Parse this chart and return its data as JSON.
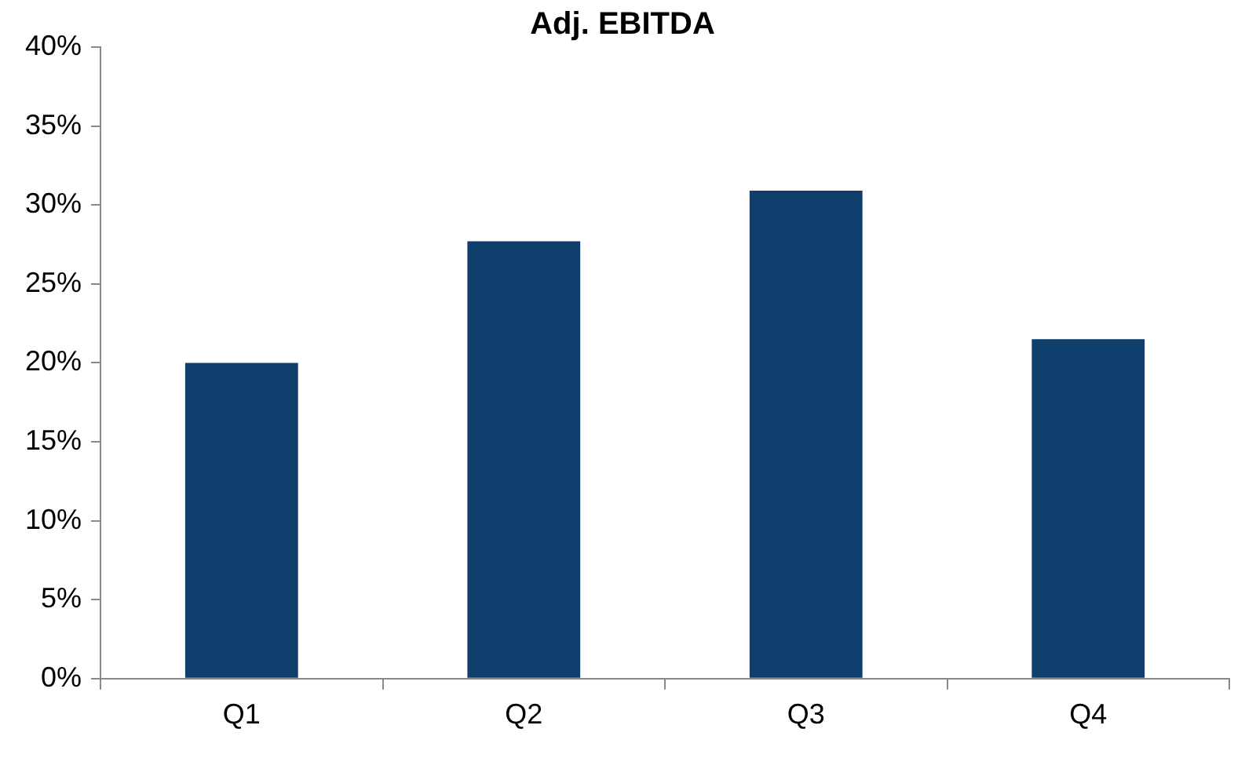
{
  "chart_data": {
    "type": "bar",
    "title": "Adj. EBITDA",
    "categories": [
      "Q1",
      "Q2",
      "Q3",
      "Q4"
    ],
    "values": [
      20,
      27.7,
      30.9,
      21.5
    ],
    "color": "#0f3e6c",
    "ylim": [
      0,
      40
    ],
    "yticks": [
      {
        "value": 0,
        "label": "0%"
      },
      {
        "value": 5,
        "label": "5%"
      },
      {
        "value": 10,
        "label": "10%"
      },
      {
        "value": 15,
        "label": "15%"
      },
      {
        "value": 20,
        "label": "20%"
      },
      {
        "value": 25,
        "label": "25%"
      },
      {
        "value": 30,
        "label": "30%"
      },
      {
        "value": 35,
        "label": "35%"
      },
      {
        "value": 40,
        "label": "40%"
      }
    ],
    "grid": false,
    "legend": false
  }
}
